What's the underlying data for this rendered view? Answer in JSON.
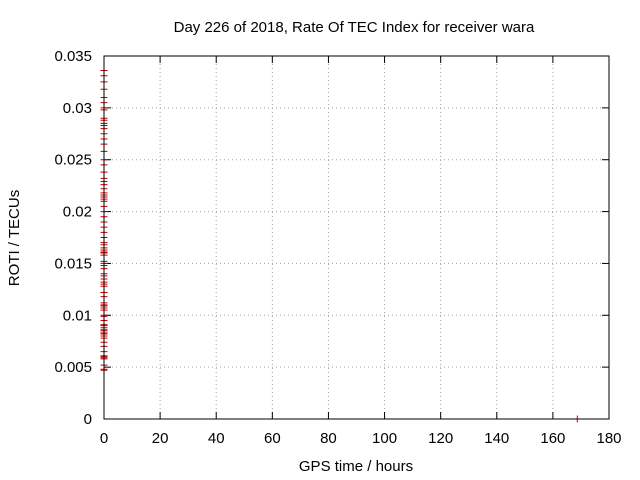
{
  "chart_data": {
    "type": "scatter",
    "title": "Day 226 of 2018, Rate Of TEC Index for receiver wara",
    "xlabel": "GPS time / hours",
    "ylabel": "ROTI / TECUs",
    "xlim": [
      0,
      180
    ],
    "ylim": [
      0,
      0.035
    ],
    "xticks": [
      0,
      20,
      40,
      60,
      80,
      100,
      120,
      140,
      160,
      180
    ],
    "yticks": [
      0,
      0.005,
      0.01,
      0.015,
      0.02,
      0.025,
      0.03,
      0.035
    ],
    "xtick_labels": [
      "0",
      "20",
      "40",
      "60",
      "80",
      "100",
      "120",
      "140",
      "160",
      "180"
    ],
    "ytick_labels": [
      "0",
      "0.005",
      "0.01",
      "0.015",
      "0.02",
      "0.025",
      "0.03",
      "0.035"
    ],
    "grid": true,
    "series": [
      {
        "name": "ROTI",
        "color": "#cc0000",
        "marker": "plus",
        "x": [
          0,
          0,
          0,
          0,
          0,
          0,
          0,
          0,
          0,
          0,
          0,
          0,
          0,
          0,
          0,
          0,
          0,
          0,
          0,
          0,
          0,
          0,
          0,
          0,
          0,
          0,
          0,
          0,
          0,
          0,
          0,
          0,
          0,
          0,
          0,
          0,
          0,
          0,
          0,
          0,
          0,
          0,
          0,
          0,
          0,
          0,
          0,
          0,
          0,
          0,
          0,
          0,
          0,
          0,
          0,
          0,
          0,
          0,
          0,
          0,
          0,
          0,
          0,
          0,
          0,
          0,
          0,
          0,
          0,
          0,
          0,
          0,
          0,
          0,
          0,
          0,
          0,
          0,
          0,
          0,
          0,
          0,
          168.7
        ],
        "y": [
          0.0047,
          0.0048,
          0.0052,
          0.0058,
          0.0059,
          0.006,
          0.0061,
          0.0065,
          0.007,
          0.0074,
          0.0078,
          0.008,
          0.0082,
          0.0083,
          0.0085,
          0.0086,
          0.0088,
          0.009,
          0.0095,
          0.01,
          0.0105,
          0.0107,
          0.0109,
          0.011,
          0.0112,
          0.0118,
          0.0122,
          0.0128,
          0.013,
          0.0132,
          0.0135,
          0.014,
          0.0145,
          0.0148,
          0.015,
          0.0152,
          0.0158,
          0.016,
          0.0161,
          0.0163,
          0.0165,
          0.017,
          0.0175,
          0.018,
          0.0185,
          0.019,
          0.0195,
          0.02,
          0.0205,
          0.021,
          0.0212,
          0.0214,
          0.0218,
          0.0222,
          0.0226,
          0.0229,
          0.0232,
          0.0238,
          0.0245,
          0.025,
          0.0258,
          0.0265,
          0.027,
          0.0275,
          0.028,
          0.0283,
          0.0285,
          0.0288,
          0.029,
          0.0298,
          0.03,
          0.0305,
          0.031,
          0.0318,
          0.0325,
          0.0331,
          0.0336,
          0.0091,
          0.0099,
          0.0138,
          0.0168,
          0.0216,
          0.0
        ]
      }
    ]
  }
}
